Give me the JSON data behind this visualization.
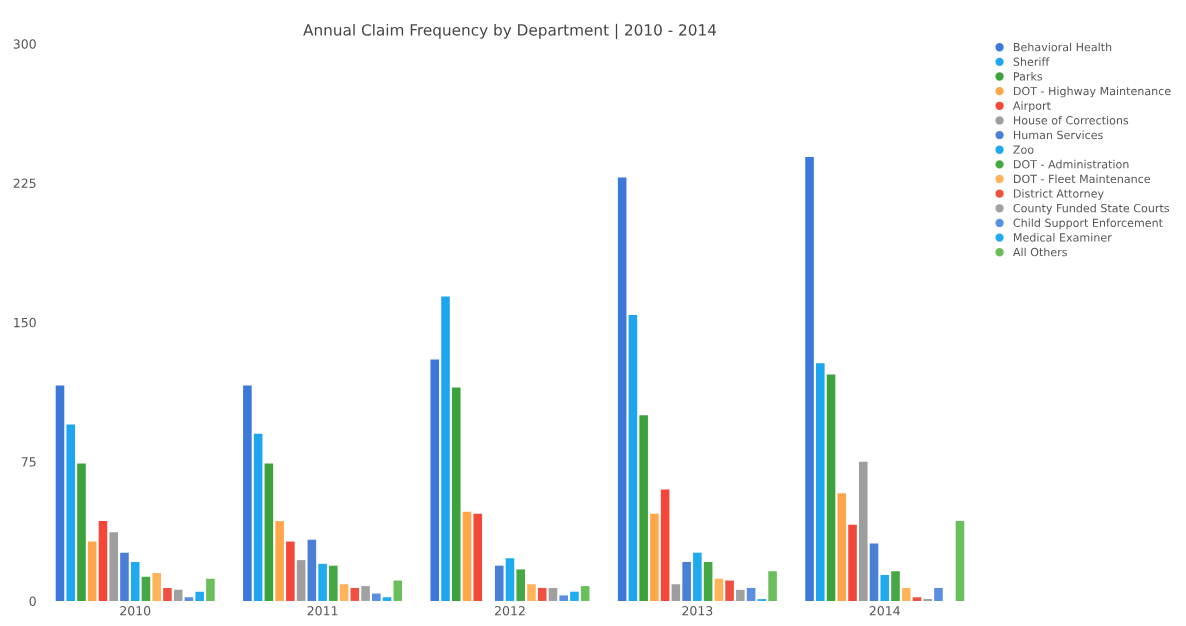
{
  "chart_data": {
    "type": "bar",
    "title": "Annual Claim Frequency by Department | 2010 - 2014",
    "categories": [
      "2010",
      "2011",
      "2012",
      "2013",
      "2014"
    ],
    "ylim": [
      0,
      300
    ],
    "yticks": [
      0,
      75,
      150,
      225,
      300
    ],
    "grid": false,
    "legend": "top right",
    "series": [
      {
        "name": "Behavioral Health",
        "color": "#3b78d8",
        "values": [
          116,
          116,
          130,
          228,
          239
        ]
      },
      {
        "name": "Sheriff",
        "color": "#1ea5f0",
        "values": [
          95,
          90,
          164,
          154,
          128
        ]
      },
      {
        "name": "Parks",
        "color": "#3ca33c",
        "values": [
          74,
          74,
          115,
          100,
          122
        ]
      },
      {
        "name": "DOT - Highway Maintenance",
        "color": "#ffa54a",
        "values": [
          32,
          43,
          48,
          47,
          58
        ]
      },
      {
        "name": "Airport",
        "color": "#f4473a",
        "values": [
          43,
          32,
          47,
          60,
          41
        ]
      },
      {
        "name": "House of Corrections",
        "color": "#9e9e9e",
        "values": [
          37,
          22,
          0,
          9,
          75
        ]
      },
      {
        "name": "Human Services",
        "color": "#4a7fd6",
        "values": [
          26,
          33,
          19,
          21,
          31
        ]
      },
      {
        "name": "Zoo",
        "color": "#20aaee",
        "values": [
          21,
          20,
          23,
          26,
          14
        ]
      },
      {
        "name": "DOT - Administration",
        "color": "#44a844",
        "values": [
          13,
          19,
          17,
          21,
          16
        ]
      },
      {
        "name": "DOT - Fleet Maintenance",
        "color": "#ffb35a",
        "values": [
          15,
          9,
          9,
          12,
          7
        ]
      },
      {
        "name": "District Attorney",
        "color": "#f05040",
        "values": [
          7,
          7,
          7,
          11,
          2
        ]
      },
      {
        "name": "County Funded State Courts",
        "color": "#a0a0a0",
        "values": [
          6,
          8,
          7,
          6,
          1
        ]
      },
      {
        "name": "Child Support Enforcement",
        "color": "#5a8ee0",
        "values": [
          2,
          4,
          3,
          7,
          7
        ]
      },
      {
        "name": "Medical Examiner",
        "color": "#22aaf0",
        "values": [
          5,
          2,
          5,
          1,
          0
        ]
      },
      {
        "name": "All Others",
        "color": "#6abf5a",
        "values": [
          12,
          11,
          8,
          16,
          43
        ]
      }
    ]
  }
}
